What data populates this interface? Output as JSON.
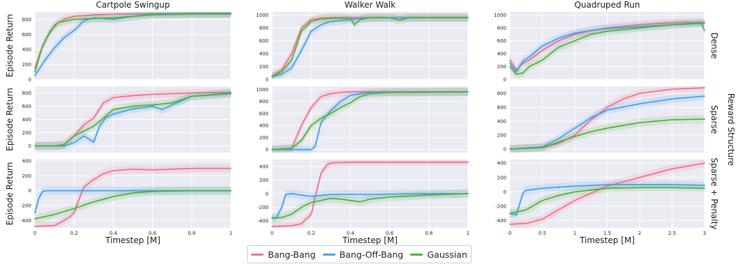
{
  "legend": {
    "entries": [
      {
        "label": "Bang-Bang",
        "color": "#f2718a"
      },
      {
        "label": "Bang-Off-Bang",
        "color": "#45a0ee"
      },
      {
        "label": "Gaussian",
        "color": "#4fb03d"
      }
    ]
  },
  "figure": {
    "row_group_label": "Reward Structure",
    "row_labels": [
      "Dense",
      "Sparse",
      "Sparse + Penalty"
    ],
    "column_titles": [
      "Cartpole Swingup",
      "Walker Walk",
      "Quadruped Run"
    ],
    "ylabel": "Episode Return",
    "xlabel": "Timestep [M]"
  },
  "chart_data": [
    {
      "type": "line",
      "title": "Cartpole Swingup",
      "row": "Dense",
      "xlim": [
        0,
        1
      ],
      "ylim": [
        0,
        900
      ],
      "yticks": [
        0,
        200,
        400,
        600,
        800
      ],
      "series": [
        {
          "name": "Bang-Bang",
          "x": [
            0,
            0.03,
            0.06,
            0.1,
            0.15,
            0.2,
            0.3,
            0.4,
            0.6,
            0.8,
            1.0
          ],
          "y": [
            150,
            380,
            550,
            720,
            800,
            840,
            860,
            870,
            875,
            880,
            880
          ]
        },
        {
          "name": "Bang-Off-Bang",
          "x": [
            0,
            0.05,
            0.1,
            0.15,
            0.2,
            0.25,
            0.3,
            0.4,
            0.5,
            0.6,
            0.8,
            1.0
          ],
          "y": [
            50,
            250,
            420,
            560,
            650,
            780,
            820,
            800,
            840,
            870,
            875,
            880
          ]
        },
        {
          "name": "Gaussian",
          "x": [
            0,
            0.04,
            0.08,
            0.12,
            0.2,
            0.3,
            0.4,
            0.6,
            0.8,
            1.0
          ],
          "y": [
            100,
            450,
            650,
            760,
            800,
            810,
            820,
            860,
            870,
            870
          ]
        }
      ]
    },
    {
      "type": "line",
      "title": "Walker Walk",
      "row": "Dense",
      "xlim": [
        0,
        1
      ],
      "ylim": [
        0,
        1050
      ],
      "yticks": [
        0,
        200,
        400,
        600,
        800,
        1000
      ],
      "series": [
        {
          "name": "Bang-Bang",
          "x": [
            0,
            0.05,
            0.1,
            0.15,
            0.2,
            0.25,
            0.3,
            0.4,
            0.6,
            0.8,
            1.0
          ],
          "y": [
            50,
            150,
            400,
            800,
            930,
            950,
            960,
            960,
            960,
            960,
            960
          ]
        },
        {
          "name": "Bang-Off-Bang",
          "x": [
            0,
            0.05,
            0.1,
            0.15,
            0.2,
            0.25,
            0.3,
            0.4,
            0.45,
            0.5,
            0.6,
            0.8,
            1.0
          ],
          "y": [
            40,
            80,
            180,
            450,
            750,
            850,
            900,
            930,
            950,
            960,
            960,
            960,
            960
          ]
        },
        {
          "name": "Gaussian",
          "x": [
            0,
            0.05,
            0.1,
            0.15,
            0.2,
            0.25,
            0.3,
            0.4,
            0.42,
            0.45,
            0.5,
            0.6,
            0.65,
            0.7,
            0.8,
            1.0
          ],
          "y": [
            50,
            120,
            300,
            750,
            900,
            940,
            950,
            950,
            850,
            930,
            960,
            960,
            920,
            960,
            960,
            960
          ]
        }
      ]
    },
    {
      "type": "line",
      "title": "Quadruped Run",
      "row": "Dense",
      "xlim": [
        0,
        3
      ],
      "ylim": [
        0,
        1050
      ],
      "yticks": [
        0,
        200,
        400,
        600,
        800,
        1000
      ],
      "series": [
        {
          "name": "Bang-Bang",
          "x": [
            0,
            0.1,
            0.2,
            0.3,
            0.5,
            0.75,
            1.0,
            1.25,
            1.5,
            2.0,
            2.5,
            3.0
          ],
          "y": [
            300,
            150,
            250,
            300,
            450,
            600,
            700,
            760,
            800,
            850,
            880,
            890
          ]
        },
        {
          "name": "Bang-Off-Bang",
          "x": [
            0,
            0.1,
            0.2,
            0.3,
            0.5,
            0.75,
            1.0,
            1.25,
            1.5,
            2.0,
            2.5,
            2.95,
            3.0
          ],
          "y": [
            250,
            120,
            280,
            350,
            520,
            640,
            720,
            760,
            790,
            820,
            850,
            880,
            760
          ]
        },
        {
          "name": "Gaussian",
          "x": [
            0,
            0.1,
            0.2,
            0.3,
            0.5,
            0.75,
            1.0,
            1.25,
            1.5,
            2.0,
            2.5,
            3.0
          ],
          "y": [
            200,
            80,
            100,
            200,
            300,
            500,
            600,
            700,
            750,
            800,
            850,
            870
          ]
        }
      ]
    },
    {
      "type": "line",
      "title": "",
      "row": "Sparse",
      "xlim": [
        0,
        1
      ],
      "ylim": [
        -100,
        900
      ],
      "yticks": [
        0,
        200,
        400,
        600,
        800
      ],
      "series": [
        {
          "name": "Bang-Bang",
          "x": [
            0,
            0.1,
            0.15,
            0.2,
            0.25,
            0.3,
            0.35,
            0.4,
            0.5,
            0.6,
            0.7,
            0.8,
            1.0
          ],
          "y": [
            0,
            0,
            20,
            150,
            320,
            420,
            650,
            730,
            760,
            780,
            790,
            800,
            810
          ]
        },
        {
          "name": "Bang-Off-Bang",
          "x": [
            0,
            0.15,
            0.2,
            0.25,
            0.3,
            0.33,
            0.36,
            0.4,
            0.5,
            0.6,
            0.65,
            0.7,
            0.8,
            1.0
          ],
          "y": [
            0,
            0,
            50,
            150,
            60,
            300,
            420,
            480,
            560,
            600,
            550,
            620,
            750,
            800
          ]
        },
        {
          "name": "Gaussian",
          "x": [
            0,
            0.1,
            0.15,
            0.2,
            0.3,
            0.35,
            0.4,
            0.5,
            0.6,
            0.7,
            0.8,
            1.0
          ],
          "y": [
            0,
            0,
            20,
            150,
            300,
            420,
            550,
            600,
            620,
            650,
            750,
            790
          ]
        }
      ]
    },
    {
      "type": "line",
      "title": "",
      "row": "Sparse",
      "xlim": [
        0,
        1
      ],
      "ylim": [
        -50,
        1050
      ],
      "yticks": [
        0,
        200,
        400,
        600,
        800,
        1000
      ],
      "series": [
        {
          "name": "Bang-Bang",
          "x": [
            0,
            0.1,
            0.15,
            0.2,
            0.25,
            0.3,
            0.35,
            0.4,
            0.5,
            0.6,
            0.8,
            1.0
          ],
          "y": [
            0,
            20,
            400,
            700,
            880,
            930,
            950,
            960,
            960,
            960,
            960,
            960
          ]
        },
        {
          "name": "Bang-Off-Bang",
          "x": [
            0,
            0.15,
            0.2,
            0.22,
            0.25,
            0.3,
            0.35,
            0.4,
            0.45,
            0.5,
            0.6,
            0.8,
            1.0
          ],
          "y": [
            0,
            0,
            0,
            50,
            450,
            650,
            800,
            900,
            930,
            950,
            950,
            955,
            960
          ]
        },
        {
          "name": "Gaussian",
          "x": [
            0,
            0.1,
            0.15,
            0.2,
            0.25,
            0.3,
            0.35,
            0.4,
            0.45,
            0.5,
            0.6,
            0.8,
            1.0
          ],
          "y": [
            0,
            20,
            150,
            400,
            520,
            600,
            700,
            780,
            880,
            930,
            950,
            955,
            960
          ]
        }
      ]
    },
    {
      "type": "line",
      "title": "",
      "row": "Sparse",
      "xlim": [
        0,
        3
      ],
      "ylim": [
        -50,
        900
      ],
      "yticks": [
        0,
        200,
        400,
        600,
        800
      ],
      "series": [
        {
          "name": "Bang-Bang",
          "x": [
            0,
            0.5,
            0.75,
            1.0,
            1.25,
            1.5,
            1.75,
            2.0,
            2.5,
            3.0
          ],
          "y": [
            0,
            20,
            80,
            200,
            420,
            600,
            720,
            800,
            860,
            880
          ]
        },
        {
          "name": "Bang-Off-Bang",
          "x": [
            0,
            0.5,
            0.75,
            1.0,
            1.25,
            1.5,
            2.0,
            2.5,
            3.0
          ],
          "y": [
            0,
            30,
            150,
            300,
            450,
            560,
            650,
            720,
            760
          ]
        },
        {
          "name": "Gaussian",
          "x": [
            0,
            0.5,
            0.75,
            1.0,
            1.25,
            1.5,
            2.0,
            2.5,
            3.0
          ],
          "y": [
            0,
            20,
            100,
            180,
            250,
            300,
            380,
            420,
            430
          ]
        }
      ]
    },
    {
      "type": "line",
      "title": "",
      "row": "Sparse + Penalty",
      "xlim": [
        0,
        1
      ],
      "ylim": [
        -500,
        420
      ],
      "yticks": [
        -400,
        -200,
        0,
        200,
        400
      ],
      "series": [
        {
          "name": "Bang-Bang",
          "x": [
            0,
            0.1,
            0.15,
            0.18,
            0.2,
            0.22,
            0.25,
            0.3,
            0.35,
            0.4,
            0.5,
            0.6,
            0.8,
            1.0
          ],
          "y": [
            -480,
            -470,
            -400,
            -350,
            -300,
            -150,
            50,
            150,
            230,
            270,
            290,
            280,
            300,
            300
          ]
        },
        {
          "name": "Bang-Off-Bang",
          "x": [
            0,
            0.02,
            0.04,
            0.06,
            1.0
          ],
          "y": [
            -300,
            -100,
            -10,
            0,
            0
          ]
        },
        {
          "name": "Gaussian",
          "x": [
            0,
            0.1,
            0.2,
            0.3,
            0.4,
            0.5,
            0.6,
            0.8,
            1.0
          ],
          "y": [
            -380,
            -320,
            -240,
            -150,
            -80,
            -30,
            -10,
            0,
            0
          ]
        }
      ]
    },
    {
      "type": "line",
      "title": "",
      "row": "Sparse + Penalty",
      "xlim": [
        0,
        1
      ],
      "ylim": [
        -500,
        500
      ],
      "yticks": [
        -400,
        -200,
        0,
        200,
        400
      ],
      "series": [
        {
          "name": "Bang-Bang",
          "x": [
            0,
            0.1,
            0.15,
            0.2,
            0.22,
            0.25,
            0.28,
            0.3,
            0.4,
            0.6,
            0.8,
            1.0
          ],
          "y": [
            -480,
            -470,
            -440,
            -300,
            -50,
            300,
            420,
            450,
            460,
            460,
            460,
            460
          ]
        },
        {
          "name": "Bang-Off-Bang",
          "x": [
            0,
            0.02,
            0.05,
            0.07,
            0.1,
            0.15,
            0.2,
            0.3,
            0.5,
            0.8,
            1.0
          ],
          "y": [
            -350,
            -360,
            -200,
            -10,
            0,
            -20,
            -40,
            -10,
            -10,
            0,
            0
          ]
        },
        {
          "name": "Gaussian",
          "x": [
            0,
            0.05,
            0.1,
            0.15,
            0.2,
            0.25,
            0.3,
            0.35,
            0.4,
            0.45,
            0.5,
            0.6,
            0.8,
            1.0
          ],
          "y": [
            -360,
            -350,
            -300,
            -200,
            -130,
            -100,
            -70,
            -80,
            -100,
            -120,
            -80,
            -50,
            -20,
            0
          ]
        }
      ]
    },
    {
      "type": "line",
      "title": "",
      "row": "Sparse + Penalty",
      "xlim": [
        0,
        3
      ],
      "ylim": [
        -500,
        450
      ],
      "yticks": [
        -400,
        -200,
        0,
        200,
        400
      ],
      "series": [
        {
          "name": "Bang-Bang",
          "x": [
            0,
            0.25,
            0.5,
            0.75,
            1.0,
            1.25,
            1.5,
            2.0,
            2.5,
            3.0
          ],
          "y": [
            -450,
            -440,
            -380,
            -250,
            -120,
            -20,
            80,
            200,
            320,
            400
          ]
        },
        {
          "name": "Bang-Off-Bang",
          "x": [
            0,
            0.1,
            0.2,
            0.25,
            0.5,
            1.0,
            1.5,
            2.0,
            2.5,
            3.0
          ],
          "y": [
            -300,
            -320,
            -20,
            20,
            50,
            80,
            100,
            100,
            100,
            90
          ]
        },
        {
          "name": "Gaussian",
          "x": [
            0,
            0.25,
            0.5,
            0.75,
            1.0,
            1.5,
            2.0,
            2.5,
            3.0
          ],
          "y": [
            -300,
            -250,
            -120,
            -50,
            0,
            50,
            60,
            60,
            50
          ]
        }
      ]
    }
  ]
}
